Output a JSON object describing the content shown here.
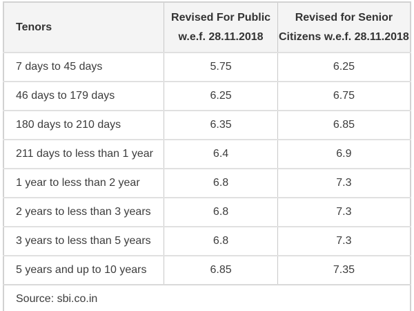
{
  "chart_data": {
    "type": "table",
    "title": "",
    "columns": [
      "Tenors",
      "Revised For Public w.e.f. 28.11.2018",
      "Revised for Senior Citizens w.e.f. 28.11.2018"
    ],
    "rows": [
      [
        "7 days to 45 days",
        5.75,
        6.25
      ],
      [
        "46 days to 179 days",
        6.25,
        6.75
      ],
      [
        "180 days to 210 days",
        6.35,
        6.85
      ],
      [
        "211 days to less than 1 year",
        6.4,
        6.9
      ],
      [
        "1 year to less than 2 year",
        6.8,
        7.3
      ],
      [
        "2 years to less than 3 years",
        6.8,
        7.3
      ],
      [
        "3 years to less than 5 years",
        6.8,
        7.3
      ],
      [
        "5 years and up to 10 years",
        6.85,
        7.35
      ]
    ],
    "source": "Source: sbi.co.in"
  },
  "header": {
    "col1": "Tenors",
    "col2_line1": "Revised For Public",
    "col2_line2": "w.e.f. 28.11.2018",
    "col3_line1": "Revised for Senior",
    "col3_line2": "Citizens w.e.f. 28.11.2018"
  },
  "rows": [
    {
      "tenor": "7 days to 45 days",
      "public": "5.75",
      "senior": "6.25"
    },
    {
      "tenor": "46 days to 179 days",
      "public": "6.25",
      "senior": "6.75"
    },
    {
      "tenor": "180 days to 210 days",
      "public": "6.35",
      "senior": "6.85"
    },
    {
      "tenor": "211 days to less than 1 year",
      "public": "6.4",
      "senior": "6.9"
    },
    {
      "tenor": "1 year to less than 2 year",
      "public": "6.8",
      "senior": "7.3"
    },
    {
      "tenor": "2 years to less than 3 years",
      "public": "6.8",
      "senior": "7.3"
    },
    {
      "tenor": "3 years to less than 5 years",
      "public": "6.8",
      "senior": "7.3"
    },
    {
      "tenor": "5 years and up to 10 years",
      "public": "6.85",
      "senior": "7.35"
    }
  ],
  "footer": {
    "source": "Source: sbi.co.in"
  },
  "colors": {
    "header_bg": "#f4f4f4",
    "outer_border": "#d2d2d2",
    "row_border": "#e0e0e0",
    "column_border": "#c8c8c8",
    "text": "#3c3c3c"
  }
}
